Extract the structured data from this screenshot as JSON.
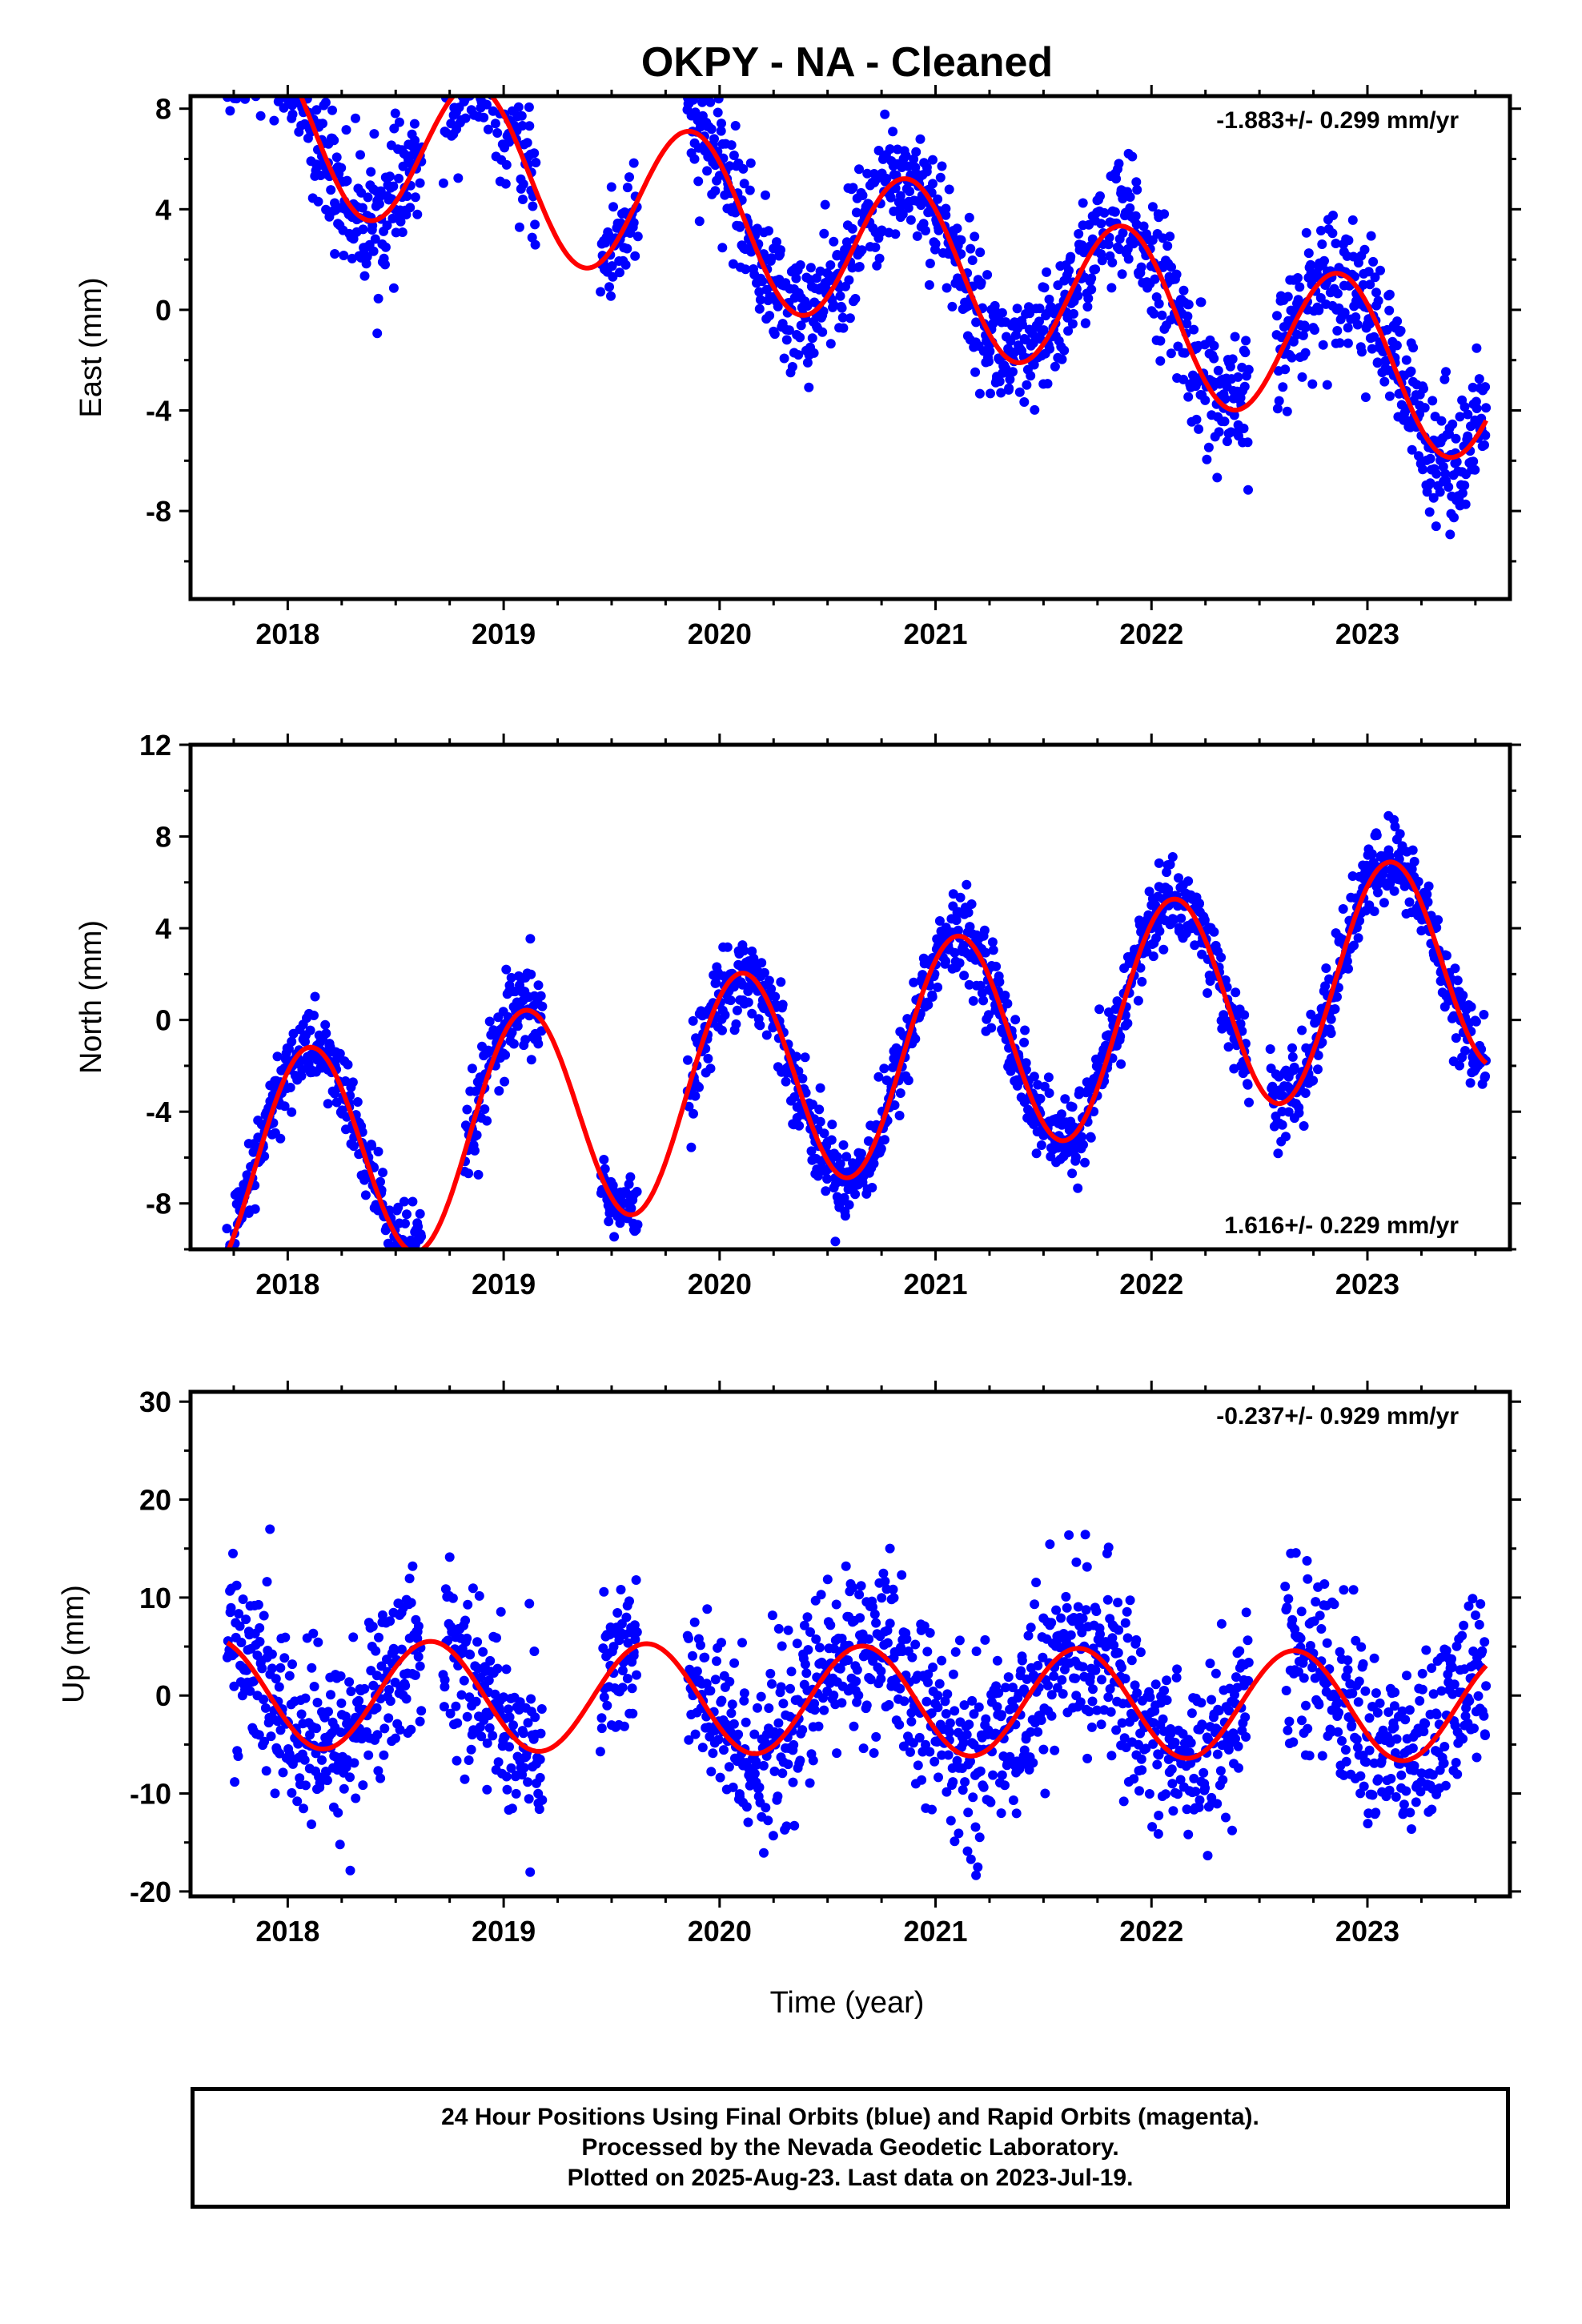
{
  "title": "OKPY  - NA - Cleaned",
  "colors": {
    "data": "#0000ff",
    "fit": "#ff0000",
    "axes": "#000000"
  },
  "xlabel": "Time (year)",
  "x_tick_labels": [
    "2018",
    "2019",
    "2020",
    "2021",
    "2022",
    "2023"
  ],
  "chart_data": [
    {
      "type": "scatter",
      "name": "East",
      "ylabel": "East (mm)",
      "rate": "-1.883+/- 0.299 mm/yr",
      "rate_position": "top-right",
      "xlim": [
        2017.55,
        2023.66
      ],
      "ylim": [
        -11.5,
        8.5
      ],
      "y_ticks": [
        "8",
        "4",
        "0",
        "-4",
        "-8"
      ],
      "y_tick_values": [
        8,
        4,
        0,
        -4,
        -8
      ],
      "fit": {
        "offset": 8.0,
        "epoch": 2017.7,
        "rate": -1.883,
        "ann_sin": 2.8,
        "ann_cos": 1.5
      },
      "data_segments": [
        {
          "start": 2017.72,
          "end": 2018.62,
          "scatter": 1.3
        },
        {
          "start": 2018.72,
          "end": 2019.15,
          "scatter": 1.2
        },
        {
          "start": 2019.45,
          "end": 2019.62,
          "scatter": 1.3
        },
        {
          "start": 2019.85,
          "end": 2020.52,
          "scatter": 1.2
        },
        {
          "start": 2020.52,
          "end": 2021.78,
          "scatter": 1.2
        },
        {
          "start": 2021.8,
          "end": 2022.45,
          "scatter": 1.3
        },
        {
          "start": 2022.58,
          "end": 2023.55,
          "scatter": 1.3
        }
      ]
    },
    {
      "type": "scatter",
      "name": "North",
      "ylabel": "North (mm)",
      "rate": "1.616+/- 0.229 mm/yr",
      "rate_position": "bottom-right",
      "xlim": [
        2017.55,
        2023.66
      ],
      "ylim": [
        -10,
        12
      ],
      "y_ticks": [
        "12",
        "8",
        "4",
        "0",
        "-4",
        "-8"
      ],
      "y_tick_values": [
        12,
        8,
        4,
        0,
        -4,
        -8
      ],
      "fit": {
        "offset": -6.7,
        "epoch": 2017.7,
        "rate": 1.616,
        "ann_sin": 2.9,
        "ann_cos": -3.9
      },
      "data_segments": [
        {
          "start": 2017.72,
          "end": 2018.62,
          "scatter": 0.9
        },
        {
          "start": 2018.82,
          "end": 2019.18,
          "scatter": 1.0
        },
        {
          "start": 2019.45,
          "end": 2019.62,
          "scatter": 0.9
        },
        {
          "start": 2019.85,
          "end": 2020.6,
          "scatter": 0.9
        },
        {
          "start": 2020.6,
          "end": 2021.8,
          "scatter": 0.9
        },
        {
          "start": 2021.8,
          "end": 2022.45,
          "scatter": 0.9
        },
        {
          "start": 2022.55,
          "end": 2023.55,
          "scatter": 0.9
        }
      ]
    },
    {
      "type": "scatter",
      "name": "Up",
      "ylabel": "Up (mm)",
      "rate": "-0.237+/- 0.929 mm/yr",
      "rate_position": "top-right",
      "xlim": [
        2017.55,
        2023.66
      ],
      "ylim": [
        -20.5,
        31
      ],
      "y_ticks": [
        "30",
        "20",
        "10",
        "0",
        "-10",
        "-20"
      ],
      "y_tick_values": [
        30,
        20,
        10,
        0,
        -10,
        -20
      ],
      "fit": {
        "offset": 0.2,
        "epoch": 2017.7,
        "rate": -0.237,
        "ann_sin": -1.3,
        "ann_cos": 5.4
      },
      "data_segments": [
        {
          "start": 2017.72,
          "end": 2018.62,
          "scatter": 4.5
        },
        {
          "start": 2018.72,
          "end": 2019.18,
          "scatter": 4.5
        },
        {
          "start": 2019.45,
          "end": 2019.62,
          "scatter": 4.5
        },
        {
          "start": 2019.85,
          "end": 2020.6,
          "scatter": 4.5
        },
        {
          "start": 2020.6,
          "end": 2021.8,
          "scatter": 4.5
        },
        {
          "start": 2021.8,
          "end": 2022.45,
          "scatter": 4.5
        },
        {
          "start": 2022.62,
          "end": 2023.55,
          "scatter": 4.5
        }
      ]
    }
  ],
  "footer": {
    "line1": "24 Hour Positions Using Final Orbits (blue) and Rapid Orbits (magenta).",
    "line2": "Processed by the Nevada Geodetic Laboratory.",
    "line3": "Plotted on 2025-Aug-23. Last data on 2023-Jul-19."
  }
}
